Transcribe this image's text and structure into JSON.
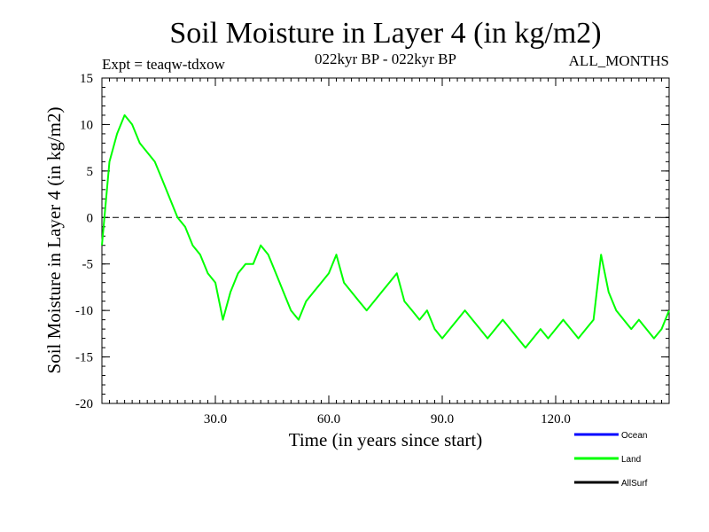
{
  "chart_data": {
    "type": "line",
    "title": "Soil Moisture in Layer 4 (in kg/m2)",
    "subtitle": "022kyr BP - 022kyr BP",
    "experiment": "Expt = teaqw-tdxow",
    "months": "ALL_MONTHS",
    "xlabel": "Time (in years since start)",
    "ylabel": "Soil Moisture in Layer 4 (in kg/m2)",
    "xlim": [
      0,
      150
    ],
    "ylim": [
      -20,
      15
    ],
    "x_ticks": [
      30,
      60,
      90,
      120
    ],
    "x_tick_labels": [
      "30.0",
      "60.0",
      "90.0",
      "120.0"
    ],
    "y_ticks": [
      15,
      10,
      5,
      0,
      -5,
      -10,
      -15,
      -20
    ],
    "y_tick_labels": [
      "15",
      "10",
      "5",
      "0",
      "-5",
      "-10",
      "-15",
      "-20"
    ],
    "reference_line": 0,
    "legend": [
      {
        "name": "Ocean",
        "color": "#0000ff"
      },
      {
        "name": "Land",
        "color": "#00ff00"
      },
      {
        "name": "AllSurf",
        "color": "#000000"
      }
    ],
    "series": [
      {
        "name": "Land",
        "color": "#00ff00",
        "x": [
          0,
          2,
          4,
          6,
          8,
          10,
          12,
          14,
          16,
          18,
          20,
          22,
          24,
          26,
          28,
          30,
          32,
          34,
          36,
          38,
          40,
          42,
          44,
          46,
          48,
          50,
          52,
          54,
          56,
          58,
          60,
          62,
          64,
          66,
          68,
          70,
          72,
          74,
          76,
          78,
          80,
          82,
          84,
          86,
          88,
          90,
          92,
          94,
          96,
          98,
          100,
          102,
          104,
          106,
          108,
          110,
          112,
          114,
          116,
          118,
          120,
          122,
          124,
          126,
          128,
          130,
          132,
          134,
          136,
          138,
          140,
          142,
          144,
          146,
          148,
          150
        ],
        "values": [
          -3,
          6,
          9,
          11,
          10,
          8,
          7,
          6,
          4,
          2,
          0,
          -1,
          -3,
          -4,
          -6,
          -7,
          -11,
          -8,
          -6,
          -5,
          -5,
          -3,
          -4,
          -6,
          -8,
          -10,
          -11,
          -9,
          -8,
          -7,
          -6,
          -4,
          -7,
          -8,
          -9,
          -10,
          -9,
          -8,
          -7,
          -6,
          -9,
          -10,
          -11,
          -10,
          -12,
          -13,
          -12,
          -11,
          -10,
          -11,
          -12,
          -13,
          -12,
          -11,
          -12,
          -13,
          -14,
          -13,
          -12,
          -13,
          -12,
          -11,
          -12,
          -13,
          -12,
          -11,
          -4,
          -8,
          -10,
          -11,
          -12,
          -11,
          -12,
          -13,
          -12,
          -10
        ]
      }
    ]
  }
}
